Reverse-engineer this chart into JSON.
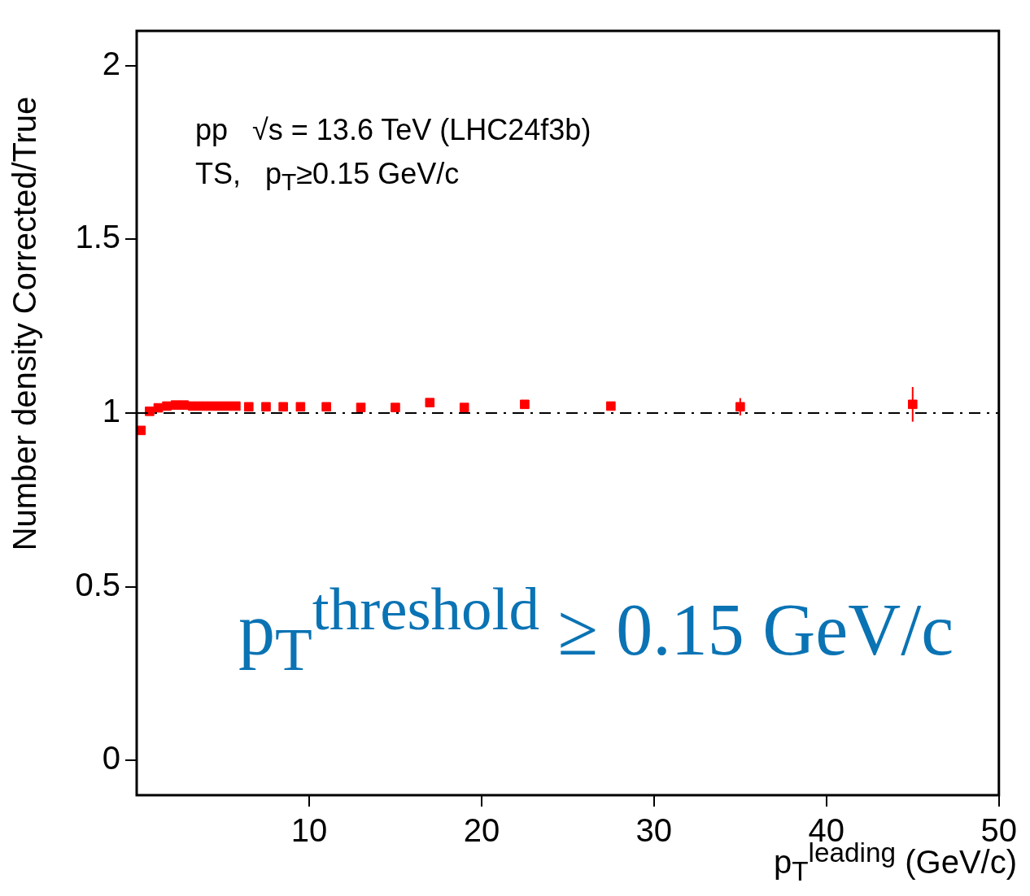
{
  "chart_data": {
    "type": "scatter",
    "xlabel": "p$_{T}$$^{leading}$ (GeV/c)",
    "ylabel": "Number density Corrected/True",
    "annotations": [
      "pp   √s = 13.6 TeV (LHC24f3b)",
      "TS,   p$_{T}$≥0.15 GeV/c",
      "p$_{T}$$^{threshold}$ ≥ 0.15 GeV/c"
    ],
    "series": [
      {
        "color": "#ff0000",
        "x": [
          0.25,
          0.75,
          1.25,
          1.75,
          2.25,
          2.75,
          3.25,
          3.75,
          4.25,
          4.75,
          5.25,
          5.75,
          6.5,
          7.5,
          8.5,
          9.5,
          11,
          13,
          15,
          17,
          19,
          22.5,
          27.5,
          35,
          45
        ],
        "values": [
          0.95,
          1.005,
          1.015,
          1.02,
          1.023,
          1.023,
          1.02,
          1.02,
          1.02,
          1.02,
          1.02,
          1.02,
          1.018,
          1.018,
          1.018,
          1.018,
          1.018,
          1.016,
          1.016,
          1.03,
          1.016,
          1.025,
          1.02,
          1.018,
          1.025
        ],
        "errors": [
          null,
          null,
          null,
          null,
          null,
          null,
          null,
          null,
          null,
          null,
          null,
          null,
          null,
          null,
          null,
          null,
          null,
          null,
          null,
          null,
          null,
          null,
          null,
          0.025,
          0.05
        ]
      }
    ],
    "marker": "square",
    "xlim": [
      0,
      50
    ],
    "xticks": [
      10,
      20,
      30,
      40,
      50
    ],
    "ylim": [
      -0.1,
      2.1
    ],
    "yticks": [
      0,
      0.5,
      1,
      1.5,
      2
    ],
    "ref_lines": [
      {
        "axis": "y",
        "value": 1,
        "label": null
      }
    ],
    "grid": false,
    "legend": false
  }
}
